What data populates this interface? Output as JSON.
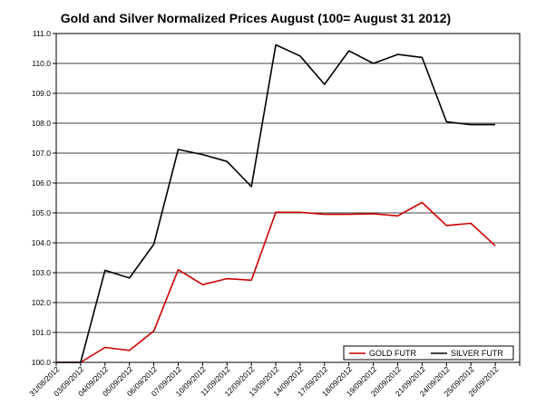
{
  "chart_data": {
    "type": "line",
    "title": "Gold and Silver Normalized Prices August (100= August 31 2012)",
    "xlabel": "",
    "ylabel": "",
    "ylim": [
      100.0,
      111.0
    ],
    "yticks": [
      "100.0",
      "101.0",
      "102.0",
      "103.0",
      "104.0",
      "105.0",
      "106.0",
      "107.0",
      "108.0",
      "109.0",
      "110.0",
      "111.0"
    ],
    "categories": [
      "31/08/2012",
      "03/09/2012",
      "04/09/2012",
      "05/09/2012",
      "06/09/2012",
      "07/09/2012",
      "10/09/2012",
      "11/09/2012",
      "12/09/2012",
      "13/09/2012",
      "14/09/2012",
      "17/09/2012",
      "18/09/2012",
      "19/09/2012",
      "20/09/2012",
      "21/09/2012",
      "24/09/2012",
      "25/09/2012",
      "26/09/2012"
    ],
    "grid": true,
    "legend_position": "bottom-right",
    "series": [
      {
        "name": "GOLD FUTR",
        "color": "#cc0000",
        "values": [
          100.0,
          100.0,
          100.5,
          100.4,
          101.05,
          103.1,
          102.6,
          102.8,
          102.75,
          105.02,
          105.02,
          104.95,
          104.95,
          104.97,
          104.9,
          105.35,
          104.58,
          104.65,
          103.9
        ]
      },
      {
        "name": "SILVER FUTR",
        "color": "#000000",
        "values": [
          100.0,
          100.0,
          103.08,
          102.82,
          103.95,
          107.12,
          106.95,
          106.72,
          105.88,
          110.62,
          110.25,
          109.3,
          110.42,
          110.0,
          110.3,
          110.2,
          108.05,
          107.95,
          107.95
        ]
      }
    ]
  }
}
